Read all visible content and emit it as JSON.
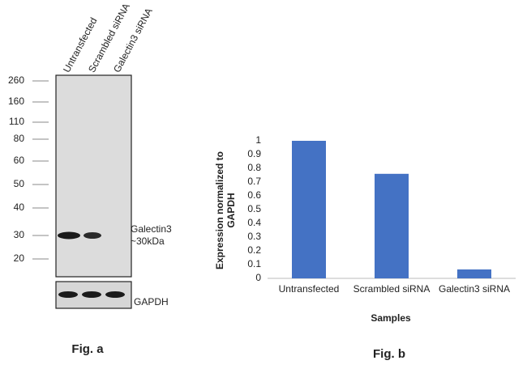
{
  "blot": {
    "lanes": [
      "Untransfected",
      "Scrambled siRNA",
      "Galectin3 siRNA"
    ],
    "markers": [
      "260",
      "160",
      "110",
      "80",
      "60",
      "50",
      "40",
      "30",
      "20"
    ],
    "band_label": [
      "Galectin3",
      "~30kDa"
    ],
    "control_label": "GAPDH",
    "caption": "Fig. a"
  },
  "chart_data": {
    "type": "bar",
    "y_label": "Expression normalized to GAPDH",
    "x_label": "Samples",
    "caption": "Fig. b",
    "categories": [
      "Untransfected",
      "Scrambled siRNA",
      "Galectin3 siRNA"
    ],
    "values": [
      1,
      0.76,
      0.065
    ],
    "color": "#4472c4",
    "ylim": [
      0,
      1
    ],
    "yticks": [
      0,
      0.1,
      0.2,
      0.3,
      0.4,
      0.5,
      0.6,
      0.7,
      0.8,
      0.9,
      1
    ],
    "grid": false
  }
}
